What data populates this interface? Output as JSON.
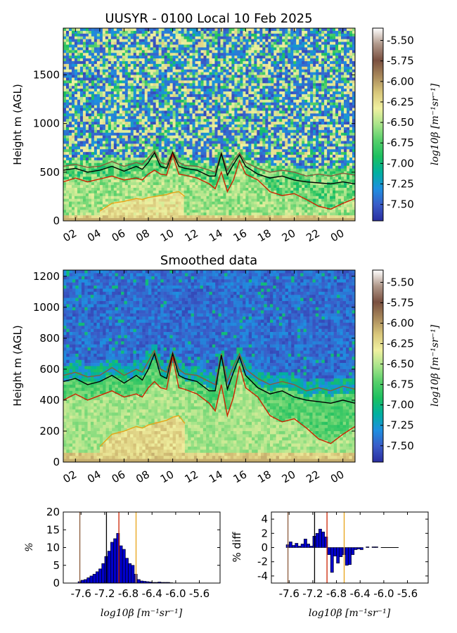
{
  "colors": {
    "black_line": "#000000",
    "red_line": "#cc2200",
    "brown_line": "#8a5a3a",
    "orange_line": "#e8a317",
    "hist_bar": "#0000cc",
    "hist_edge": "#000000",
    "colormap": [
      "#2a2ea0",
      "#3a5cc8",
      "#1e8fe0",
      "#00b0a0",
      "#1cc060",
      "#55cf6a",
      "#a8e48a",
      "#f0f0a0",
      "#d8c67a",
      "#a8885a",
      "#7a5040",
      "#b0988a",
      "#ffffff"
    ]
  },
  "chart_data": [
    {
      "type": "heatmap",
      "title": "UUSYR - 0100 Local 10 Feb 2025",
      "xlabel": "",
      "ylabel": "Height m (AGL)",
      "x_ticks": [
        "02",
        "04",
        "06",
        "08",
        "10",
        "12",
        "14",
        "16",
        "18",
        "20",
        "22",
        "00"
      ],
      "x_tick_hours": [
        2,
        4,
        6,
        8,
        10,
        12,
        14,
        16,
        18,
        20,
        22,
        24
      ],
      "xlim": [
        1,
        25
      ],
      "ylim": [
        0,
        1980
      ],
      "y_ticks": [
        0,
        500,
        1000,
        1500
      ],
      "colorbar": {
        "label": "log10β [m⁻¹sr⁻¹]",
        "range": [
          -7.7,
          -5.35
        ],
        "ticks": [
          "-5.50",
          "-5.75",
          "-6.00",
          "-6.25",
          "-6.50",
          "-6.75",
          "-7.00",
          "-7.25",
          "-7.50"
        ],
        "tick_values": [
          -5.5,
          -5.75,
          -6.0,
          -6.25,
          -6.5,
          -6.75,
          -7.0,
          -7.25,
          -7.5
        ]
      },
      "lines": {
        "hours": [
          1,
          2,
          3,
          4,
          5,
          6,
          7,
          7.5,
          8,
          8.5,
          9,
          9.5,
          10,
          10.5,
          11,
          12,
          13,
          13.5,
          14,
          14.5,
          15,
          15.5,
          16,
          17,
          18,
          19,
          20,
          21,
          22,
          23,
          24,
          25
        ],
        "black": [
          520,
          540,
          500,
          520,
          560,
          510,
          560,
          530,
          600,
          700,
          560,
          540,
          700,
          560,
          540,
          520,
          460,
          460,
          690,
          470,
          580,
          680,
          560,
          480,
          440,
          460,
          420,
          400,
          390,
          380,
          400,
          380
        ],
        "brown": [
          560,
          580,
          550,
          560,
          610,
          560,
          600,
          580,
          650,
          720,
          600,
          580,
          710,
          600,
          570,
          560,
          520,
          500,
          700,
          520,
          620,
          700,
          600,
          540,
          500,
          520,
          500,
          460,
          480,
          460,
          490,
          470
        ],
        "red": [
          400,
          440,
          400,
          430,
          460,
          420,
          440,
          420,
          480,
          520,
          480,
          470,
          680,
          480,
          470,
          440,
          380,
          330,
          500,
          300,
          420,
          620,
          480,
          420,
          300,
          260,
          280,
          220,
          150,
          120,
          180,
          230
        ],
        "orange": [
          null,
          null,
          null,
          100,
          180,
          200,
          230,
          220,
          240,
          250,
          260,
          270,
          290,
          300,
          250,
          null,
          null,
          null,
          null,
          null,
          null,
          null,
          null,
          null,
          null,
          null,
          null,
          null,
          null,
          null,
          null,
          null
        ]
      }
    },
    {
      "type": "heatmap",
      "title": "Smoothed data",
      "xlabel": "",
      "ylabel": "Height m (AGL)",
      "x_ticks": [
        "02",
        "04",
        "06",
        "08",
        "10",
        "12",
        "14",
        "16",
        "18",
        "20",
        "22",
        "00"
      ],
      "x_tick_hours": [
        2,
        4,
        6,
        8,
        10,
        12,
        14,
        16,
        18,
        20,
        22,
        24
      ],
      "xlim": [
        1,
        25
      ],
      "ylim": [
        0,
        1240
      ],
      "y_ticks": [
        0,
        200,
        400,
        600,
        800,
        1000,
        1200
      ],
      "colorbar": {
        "label": "log10β [m⁻¹sr⁻¹]",
        "range": [
          -7.7,
          -5.35
        ],
        "ticks": [
          "-5.50",
          "-5.75",
          "-6.00",
          "-6.25",
          "-6.50",
          "-6.75",
          "-7.00",
          "-7.25",
          "-7.50"
        ],
        "tick_values": [
          -5.5,
          -5.75,
          -6.0,
          -6.25,
          -6.5,
          -6.75,
          -7.0,
          -7.25,
          -7.5
        ]
      },
      "lines": {
        "hours": [
          1,
          2,
          3,
          4,
          5,
          6,
          7,
          7.5,
          8,
          8.5,
          9,
          9.5,
          10,
          10.5,
          11,
          12,
          13,
          13.5,
          14,
          14.5,
          15,
          15.5,
          16,
          17,
          18,
          19,
          20,
          21,
          22,
          23,
          24,
          25
        ],
        "black": [
          520,
          540,
          500,
          520,
          560,
          510,
          560,
          530,
          600,
          700,
          560,
          540,
          700,
          560,
          540,
          520,
          460,
          460,
          690,
          470,
          580,
          680,
          560,
          480,
          440,
          460,
          420,
          400,
          390,
          380,
          400,
          380
        ],
        "brown": [
          560,
          580,
          550,
          560,
          610,
          560,
          600,
          580,
          650,
          720,
          600,
          580,
          710,
          600,
          570,
          560,
          520,
          500,
          700,
          520,
          620,
          700,
          600,
          540,
          500,
          520,
          500,
          460,
          480,
          460,
          490,
          470
        ],
        "red": [
          400,
          440,
          400,
          430,
          460,
          420,
          440,
          420,
          480,
          520,
          480,
          470,
          680,
          480,
          470,
          440,
          380,
          330,
          500,
          300,
          420,
          620,
          480,
          420,
          300,
          260,
          280,
          220,
          150,
          120,
          180,
          230
        ],
        "orange": [
          null,
          null,
          null,
          100,
          180,
          200,
          230,
          220,
          240,
          250,
          260,
          270,
          290,
          300,
          250,
          null,
          null,
          null,
          null,
          null,
          null,
          null,
          null,
          null,
          null,
          null,
          null,
          null,
          null,
          null,
          null,
          null
        ]
      }
    },
    {
      "type": "bar",
      "title": "",
      "xlabel": "log10β [m⁻¹sr⁻¹]",
      "ylabel": "%",
      "xlim": [
        -7.9,
        -5.25
      ],
      "ylim": [
        0,
        20
      ],
      "x_ticks": [
        "-7.6",
        "-7.2",
        "-6.8",
        "-6.4",
        "-6.0",
        "-5.6"
      ],
      "x_tick_values": [
        -7.6,
        -7.2,
        -6.8,
        -6.4,
        -6.0,
        -5.6
      ],
      "y_ticks": [
        0,
        5,
        10,
        15,
        20
      ],
      "bin_start": -7.65,
      "bin_width": 0.05,
      "values": [
        0.4,
        0.8,
        1.0,
        1.5,
        2.0,
        2.5,
        3.2,
        4.0,
        5.5,
        7.5,
        9.0,
        11.5,
        12.5,
        14.0,
        10.5,
        9.5,
        7.0,
        5.5,
        5.0,
        2.5,
        1.0,
        0.6,
        0.5,
        0.4,
        0.3,
        0.2,
        0.2,
        0.3,
        0.2,
        0.2,
        0.2,
        0.1
      ],
      "vlines": [
        {
          "x": -7.62,
          "color": "#8a5a3a"
        },
        {
          "x": -7.17,
          "color": "#000000"
        },
        {
          "x": -6.96,
          "color": "#cc2200"
        },
        {
          "x": -6.67,
          "color": "#e8a317"
        }
      ]
    },
    {
      "type": "bar",
      "title": "",
      "xlabel": "log10β [m⁻¹sr⁻¹]",
      "ylabel": "% diff",
      "xlim": [
        -7.9,
        -5.25
      ],
      "ylim": [
        -5,
        5
      ],
      "x_ticks": [
        "-7.6",
        "-7.2",
        "-6.8",
        "-6.4",
        "-6.0",
        "-5.6"
      ],
      "x_tick_values": [
        -7.6,
        -7.2,
        -6.8,
        -6.4,
        -6.0,
        -5.6
      ],
      "y_ticks": [
        -4,
        -2,
        0,
        2,
        4
      ],
      "bin_start": -7.65,
      "bin_width": 0.05,
      "values": [
        0.4,
        0.8,
        0.3,
        0.6,
        0.2,
        0.5,
        1.2,
        0.5,
        0.2,
        1.6,
        2.0,
        2.6,
        2.2,
        1.5,
        -1.0,
        -3.5,
        -1.2,
        -2.2,
        -1.3,
        -1.0,
        -2.5,
        -2.4,
        -1.0,
        -0.3,
        -0.2,
        -0.3,
        0.0,
        0.1,
        0.0,
        0.1,
        0.1,
        0.0
      ],
      "tail_line_to": -5.75,
      "vlines": [
        {
          "x": -7.62,
          "color": "#8a5a3a"
        },
        {
          "x": -7.17,
          "color": "#000000"
        },
        {
          "x": -6.96,
          "color": "#cc2200"
        },
        {
          "x": -6.67,
          "color": "#e8a317"
        }
      ]
    }
  ]
}
